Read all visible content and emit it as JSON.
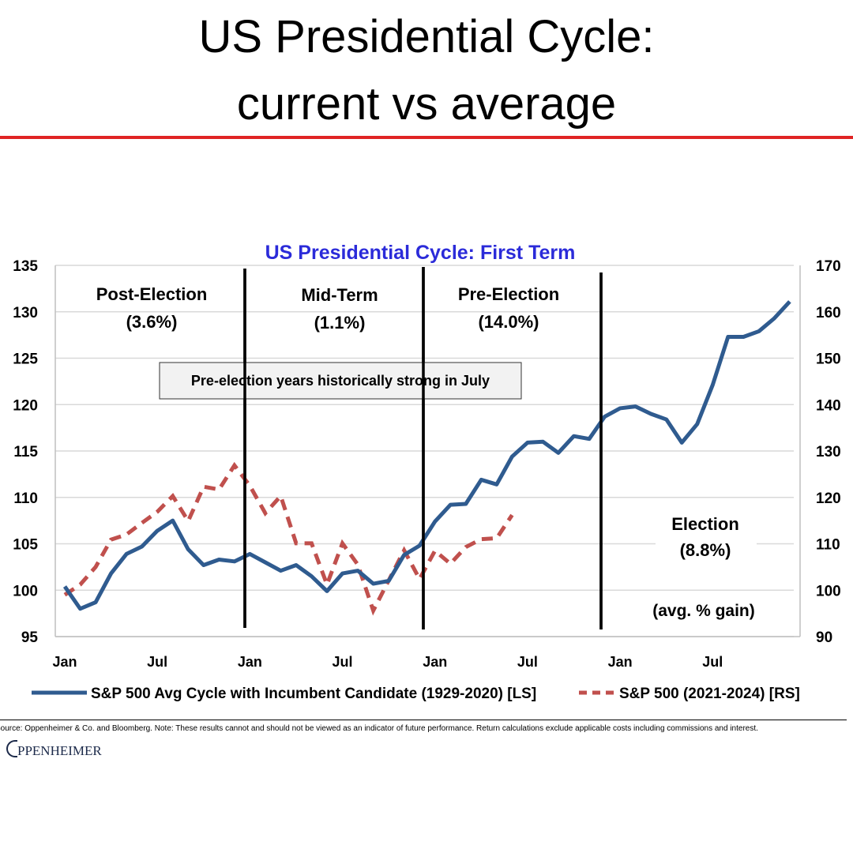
{
  "header": {
    "title_line1": "US Presidential Cycle:",
    "title_line2": "current vs average"
  },
  "colors": {
    "rule": "#e02424",
    "avg_series": "#2f5b8f",
    "current_series": "#c0504d",
    "chart_title": "#2b2bd9"
  },
  "chart_data": {
    "type": "line",
    "title": "US Presidential Cycle: First Term",
    "x_tick_labels": [
      "Jan",
      "Jul",
      "Jan",
      "Jul",
      "Jan",
      "Jul",
      "Jan",
      "Jul"
    ],
    "left_axis": {
      "ylim": [
        95,
        135
      ],
      "ticks": [
        95,
        100,
        105,
        110,
        115,
        120,
        125,
        130,
        135
      ]
    },
    "right_axis": {
      "ylim": [
        90,
        170
      ],
      "ticks": [
        90,
        100,
        110,
        120,
        130,
        140,
        150,
        160,
        170
      ]
    },
    "grid": true,
    "legend_placement": "bottom",
    "series": [
      {
        "name": "S&P 500 Avg Cycle with Incumbent Candidate (1929-2020) [LS]",
        "axis": "left",
        "style": "solid",
        "values": [
          100.4,
          98.0,
          98.7,
          101.8,
          103.9,
          104.7,
          106.4,
          107.5,
          104.4,
          102.7,
          103.3,
          103.1,
          103.9,
          103.0,
          102.1,
          102.7,
          101.5,
          99.9,
          101.8,
          102.1,
          100.7,
          101.0,
          103.8,
          104.8,
          107.4,
          109.2,
          109.3,
          111.9,
          111.4,
          114.4,
          115.9,
          116.0,
          114.8,
          116.6,
          116.3,
          118.7,
          119.6,
          119.8,
          119.0,
          118.4,
          115.9,
          117.9,
          122.1,
          127.3,
          127.3,
          127.9,
          129.3,
          131.1
        ]
      },
      {
        "name": "S&P 500 (2021-2024) [RS]",
        "axis": "right",
        "style": "dashed",
        "values": [
          99.0,
          101.2,
          105.0,
          110.9,
          112.0,
          114.5,
          116.9,
          120.3,
          114.9,
          122.3,
          121.7,
          126.9,
          122.5,
          116.6,
          120.3,
          110.1,
          110.1,
          101.2,
          110.1,
          105.5,
          95.6,
          102.1,
          108.6,
          102.4,
          108.5,
          105.7,
          109.3,
          111.0,
          111.2,
          116.2
        ]
      }
    ],
    "annotations": {
      "phases": [
        {
          "name": "Post-Election",
          "gain": "(3.6%)"
        },
        {
          "name": "Mid-Term",
          "gain": "(1.1%)"
        },
        {
          "name": "Pre-Election",
          "gain": "(14.0%)"
        },
        {
          "name": "Election",
          "gain": "(8.8%)"
        }
      ],
      "avg_note": "(avg. % gain)",
      "callout": "Pre-election years historically strong in July"
    }
  },
  "footer": {
    "source": "Source: Oppenheimer & Co. and Bloomberg. Note: These results cannot and should not be viewed as an indicator of future performance. Return calculations exclude applicable costs including commissions and interest.",
    "logo_text": "OPPENHEIMER",
    "logo_visible": "PPENHEIMER"
  }
}
